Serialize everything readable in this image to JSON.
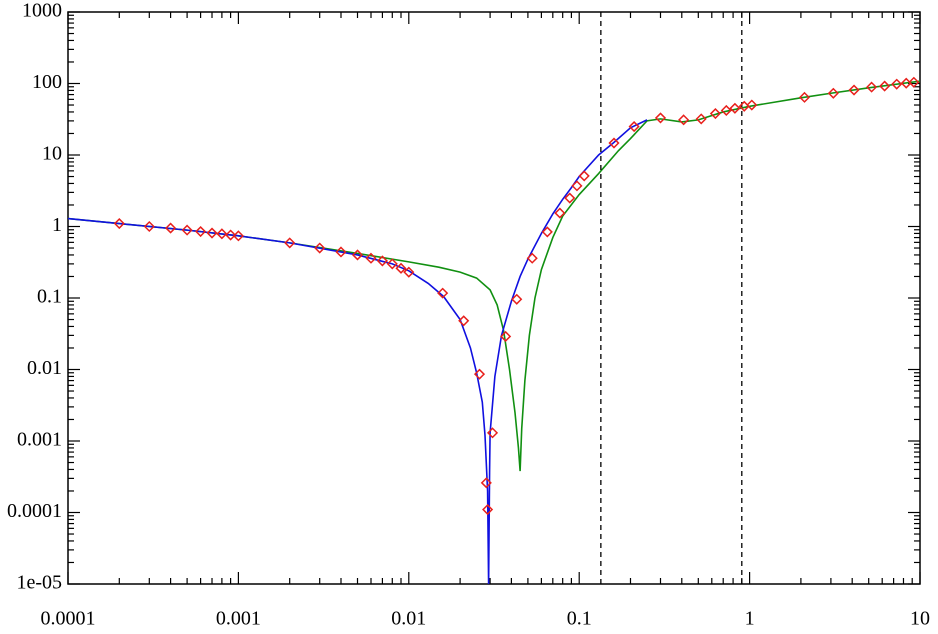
{
  "chart_data": {
    "type": "line",
    "xscale": "log",
    "yscale": "log",
    "xlim": [
      0.0001,
      10
    ],
    "xticks": [
      0.0001,
      0.001,
      0.01,
      0.1,
      1,
      10
    ],
    "ylim": [
      1e-05,
      1000
    ],
    "yticks": [
      {
        "value": 1e-05,
        "label": "1e-05"
      },
      0.0001,
      0.001,
      0.01,
      0.1,
      1,
      10,
      100,
      1000
    ],
    "vlines": {
      "color": "#000000",
      "dash": true,
      "x": [
        0.134,
        0.9
      ]
    },
    "series": [
      {
        "style": "line",
        "color": "#119011",
        "x": [
          0.0001,
          0.0002,
          0.0005,
          0.001,
          0.002,
          0.005,
          0.01,
          0.015,
          0.02,
          0.025,
          0.03,
          0.033,
          0.036,
          0.039,
          0.042,
          0.044,
          0.045,
          0.046,
          0.048,
          0.051,
          0.055,
          0.06,
          0.07,
          0.08,
          0.1,
          0.13,
          0.17,
          0.2,
          0.25,
          0.3,
          0.4,
          0.5,
          0.7,
          1,
          2,
          3,
          5,
          10
        ],
        "values": [
          1.29,
          1.1,
          0.89,
          0.74,
          0.59,
          0.42,
          0.32,
          0.27,
          0.23,
          0.19,
          0.13,
          0.08,
          0.035,
          0.01,
          0.0025,
          0.0008,
          0.00038,
          0.0015,
          0.007,
          0.03,
          0.1,
          0.25,
          0.7,
          1.4,
          2.8,
          5.5,
          11.5,
          17,
          30,
          32,
          29,
          31,
          40,
          48,
          63,
          73,
          87,
          108
        ]
      },
      {
        "style": "line",
        "color": "#1010e0",
        "x": [
          0.0001,
          0.0002,
          0.0005,
          0.001,
          0.002,
          0.005,
          0.008,
          0.01,
          0.013,
          0.016,
          0.02,
          0.023,
          0.025,
          0.027,
          0.028,
          0.029,
          0.0294,
          0.0298,
          0.03,
          0.032,
          0.035,
          0.04,
          0.045,
          0.05,
          0.06,
          0.07,
          0.08,
          0.09,
          0.1,
          0.13,
          0.16,
          0.2,
          0.25
        ],
        "values": [
          1.29,
          1.1,
          0.89,
          0.74,
          0.59,
          0.4,
          0.3,
          0.24,
          0.16,
          0.105,
          0.05,
          0.02,
          0.009,
          0.0035,
          0.0012,
          0.0002,
          1e-05,
          0.0004,
          0.0013,
          0.008,
          0.03,
          0.09,
          0.2,
          0.35,
          0.8,
          1.5,
          2.4,
          3.5,
          5,
          10,
          15,
          24,
          31
        ]
      },
      {
        "style": "marker",
        "color": "#e8201c",
        "x": [
          0.0002,
          0.0003,
          0.0004,
          0.0005,
          0.0006,
          0.0007,
          0.0008,
          0.0009,
          0.001,
          0.002,
          0.003,
          0.004,
          0.005,
          0.006,
          0.007,
          0.008,
          0.009,
          0.01,
          0.0158,
          0.021,
          0.026,
          0.0285,
          0.029,
          0.031,
          0.037,
          0.043,
          0.053,
          0.065,
          0.077,
          0.088,
          0.097,
          0.107,
          0.16,
          0.21,
          0.3,
          0.41,
          0.52,
          0.63,
          0.73,
          0.82,
          0.93,
          1.03,
          2.1,
          3.1,
          4.1,
          5.2,
          6.2,
          7.3,
          8.3,
          9.2
        ],
        "values": [
          1.1,
          1.0,
          0.95,
          0.89,
          0.85,
          0.81,
          0.79,
          0.76,
          0.74,
          0.59,
          0.5,
          0.44,
          0.4,
          0.36,
          0.33,
          0.3,
          0.26,
          0.23,
          0.117,
          0.048,
          0.0086,
          0.00026,
          0.00011,
          0.0013,
          0.029,
          0.096,
          0.36,
          0.84,
          1.54,
          2.5,
          3.7,
          5.1,
          14.7,
          25,
          33,
          31,
          32,
          38,
          42,
          45,
          48,
          50,
          64,
          73,
          81,
          89,
          92,
          98,
          101,
          104
        ]
      }
    ]
  }
}
